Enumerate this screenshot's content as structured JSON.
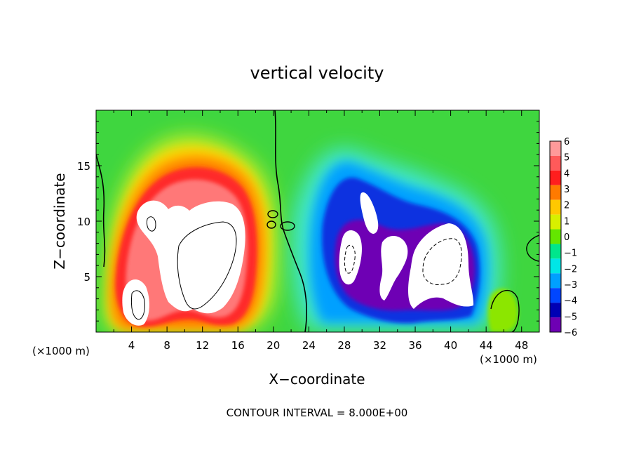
{
  "chart_data": {
    "type": "heatmap",
    "title": "vertical velocity",
    "xlabel": "X−coordinate",
    "ylabel": "Z−coordinate",
    "x_unit_left": "(×1000 m)",
    "x_unit_right": "(×1000 m)",
    "footer": "CONTOUR INTERVAL = 8.000E+00",
    "xlim": [
      0,
      50
    ],
    "ylim": [
      0,
      20
    ],
    "x_ticks": [
      4,
      8,
      12,
      16,
      20,
      24,
      28,
      32,
      36,
      40,
      44,
      48
    ],
    "x_tick_labels": [
      "4",
      "8",
      "12",
      "16",
      "20",
      "24",
      "28",
      "32",
      "36",
      "40",
      "44",
      "48"
    ],
    "y_ticks": [
      5,
      10,
      15
    ],
    "y_tick_labels": [
      "5",
      "10",
      "15"
    ],
    "colorbar": {
      "labels": [
        "6",
        "5",
        "4",
        "3",
        "2",
        "1",
        "0",
        "−1",
        "−2",
        "−3",
        "−4",
        "−5",
        "−6"
      ],
      "levels": [
        6,
        5,
        4,
        3,
        2,
        1,
        0,
        -1,
        -2,
        -3,
        -4,
        -5,
        -6
      ],
      "colors": [
        "#ff9a9a",
        "#ff5a5a",
        "#ff1e1e",
        "#ff7a00",
        "#ffc800",
        "#d7f000",
        "#64e600",
        "#00e68c",
        "#00e6e6",
        "#00a0ff",
        "#0046ff",
        "#0000b4",
        "#6e00b4"
      ]
    },
    "colors": {
      "background_field": "#3fd63f",
      "updraft_core": "#ffffff",
      "downdraft_core": "#ffffff"
    },
    "regions": [
      {
        "kind": "updraft",
        "x": [
          2,
          21
        ],
        "z": [
          0,
          17
        ],
        "peak_w": 8
      },
      {
        "kind": "downdraft",
        "x": [
          25,
          44
        ],
        "z": [
          0,
          16
        ],
        "peak_w": -8
      }
    ]
  }
}
